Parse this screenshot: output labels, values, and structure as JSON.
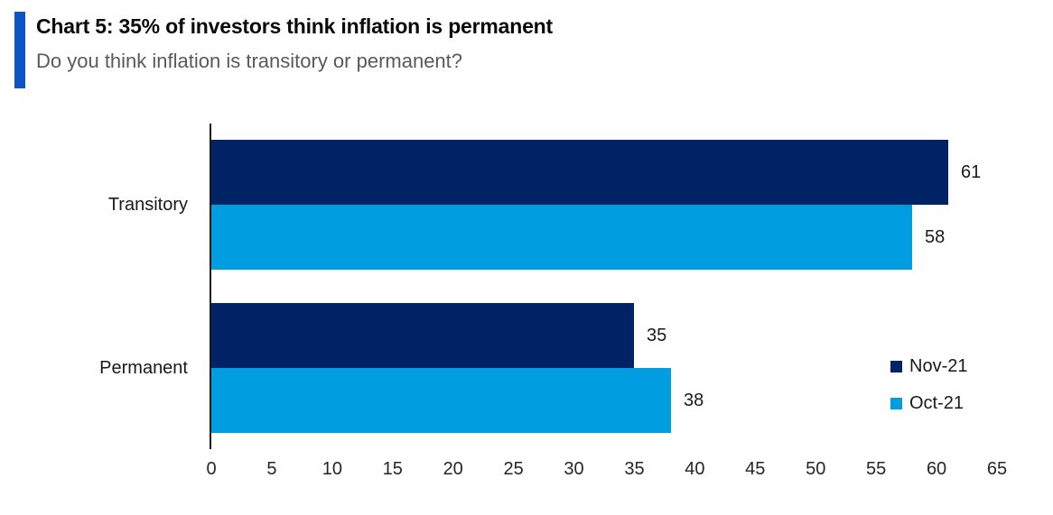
{
  "header": {
    "title": "Chart 5: 35% of investors think inflation is permanent",
    "subtitle": "Do you think inflation is transitory or permanent?",
    "accent_color": "#0d55c4"
  },
  "chart_data": {
    "type": "bar",
    "orientation": "horizontal",
    "title": "Chart 5: 35% of investors think inflation is permanent",
    "subtitle": "Do you think inflation is transitory or permanent?",
    "categories": [
      "Transitory",
      "Permanent"
    ],
    "series": [
      {
        "name": "Nov-21",
        "color": "#002366",
        "values": [
          61,
          35
        ]
      },
      {
        "name": "Oct-21",
        "color": "#009de0",
        "values": [
          58,
          38
        ]
      }
    ],
    "xlim": [
      0,
      65
    ],
    "x_ticks": [
      0,
      5,
      10,
      15,
      20,
      25,
      30,
      35,
      40,
      45,
      50,
      55,
      60,
      65
    ],
    "value_labels": true,
    "grid": false,
    "legend_position": "right-bottom",
    "axis_color": "#1a1a1a"
  }
}
